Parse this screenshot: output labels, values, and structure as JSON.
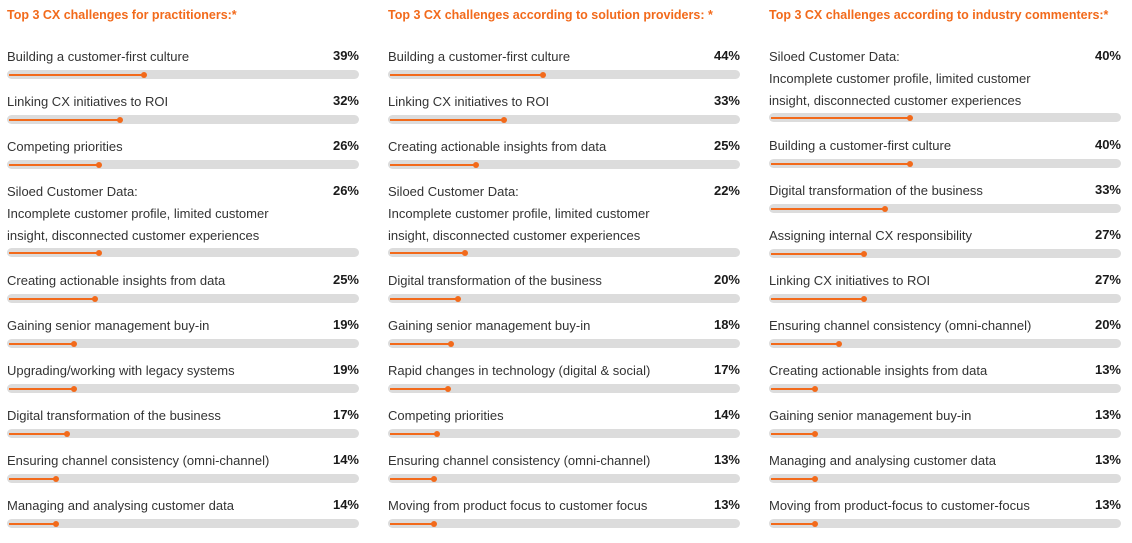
{
  "chart_data": [
    {
      "type": "bar",
      "title": "Top 3 CX challenges for practitioners:*",
      "unit": "%",
      "xlim": [
        0,
        100
      ],
      "categories": [
        "Building a customer-first culture",
        "Linking CX initiatives to ROI",
        "Competing priorities",
        "Siloed Customer Data:\nIncomplete customer profile, limited customer insight, disconnected customer experiences",
        "Creating actionable insights from data",
        "Gaining senior management buy-in",
        "Upgrading/working with legacy systems",
        "Digital transformation of the business",
        "Ensuring channel consistency (omni-channel)",
        "Managing and analysing customer data"
      ],
      "values": [
        39,
        32,
        26,
        26,
        25,
        19,
        19,
        17,
        14,
        14
      ],
      "value_labels": [
        "39%",
        "32%",
        "26%",
        "26%",
        "25%",
        "19%",
        "19%",
        "17%",
        "14%",
        "14%"
      ]
    },
    {
      "type": "bar",
      "title": "Top 3 CX challenges according to solution providers: *",
      "unit": "%",
      "xlim": [
        0,
        100
      ],
      "categories": [
        "Building a customer-first culture",
        "Linking CX initiatives to ROI",
        "Creating actionable insights from data",
        "Siloed Customer Data:\nIncomplete customer profile, limited customer insight, disconnected customer experiences",
        "Digital transformation of the business",
        "Gaining senior management buy-in",
        "Rapid changes in technology (digital & social)",
        "Competing priorities",
        "Ensuring channel consistency (omni-channel)",
        "Moving from product focus to customer focus"
      ],
      "values": [
        44,
        33,
        25,
        22,
        20,
        18,
        17,
        14,
        13,
        13
      ],
      "value_labels": [
        "44%",
        "33%",
        "25%",
        "22%",
        "20%",
        "18%",
        "17%",
        "14%",
        "13%",
        "13%"
      ]
    },
    {
      "type": "bar",
      "title": "Top 3 CX challenges according to industry commenters:*",
      "unit": "%",
      "xlim": [
        0,
        100
      ],
      "categories": [
        "Siloed Customer Data:\nIncomplete customer profile, limited customer insight, disconnected customer experiences",
        "Building a customer-first culture",
        "Digital transformation of the business",
        "Assigning internal CX responsibility",
        "Linking CX initiatives to ROI",
        "Ensuring channel consistency (omni-channel)",
        "Creating actionable insights from data",
        "Gaining senior management buy-in",
        "Managing and analysing customer data",
        "Moving from product-focus to customer-focus"
      ],
      "values": [
        40,
        40,
        33,
        27,
        27,
        20,
        13,
        13,
        13,
        13
      ],
      "value_labels": [
        "40%",
        "40%",
        "33%",
        "27%",
        "27%",
        "20%",
        "13%",
        "13%",
        "13%",
        "13%"
      ]
    }
  ],
  "colors": {
    "accent": "#f26a1b",
    "track": "#dcdcdc",
    "text": "#333333"
  }
}
